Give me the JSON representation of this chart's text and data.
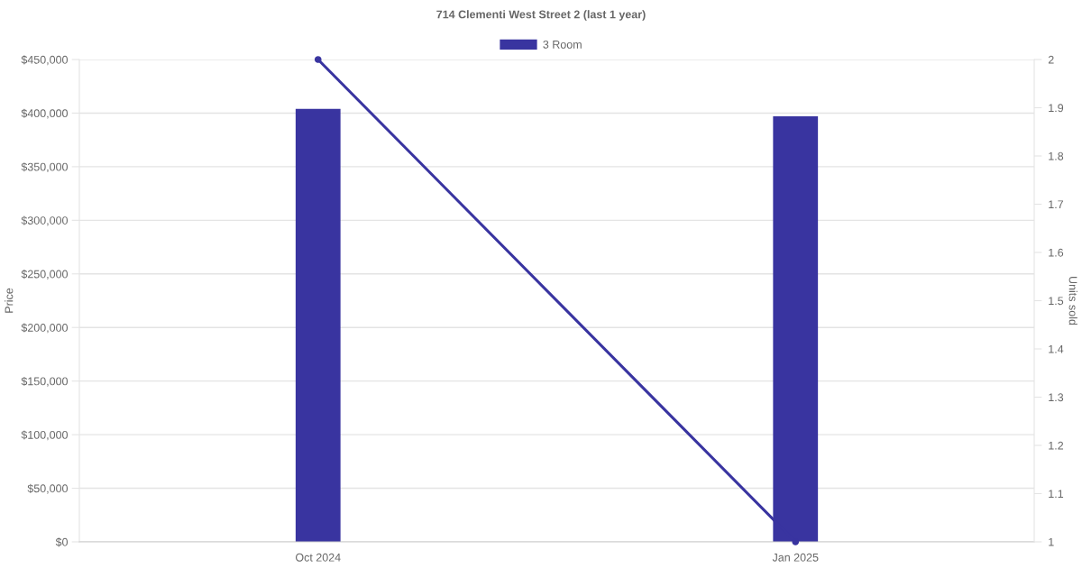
{
  "chart_data": {
    "type": "bar",
    "title": "714 Clementi West Street 2 (last 1 year)",
    "ylabel": "Price",
    "y2label": "Units sold",
    "categories": [
      "Oct 2024",
      "Jan 2025"
    ],
    "series": [
      {
        "name": "3 Room",
        "color": "#3934a0",
        "values": [
          404000,
          397000
        ]
      },
      {
        "type": "line",
        "axis": "y2",
        "color": "#3934a0",
        "values": [
          2,
          1
        ],
        "marker": "circle",
        "line_style": "solid"
      }
    ],
    "ylim": [
      0,
      450000
    ],
    "yticks": [
      {
        "value": 0,
        "label": "$0"
      },
      {
        "value": 50000,
        "label": "$50,000"
      },
      {
        "value": 100000,
        "label": "$100,000"
      },
      {
        "value": 150000,
        "label": "$150,000"
      },
      {
        "value": 200000,
        "label": "$200,000"
      },
      {
        "value": 250000,
        "label": "$250,000"
      },
      {
        "value": 300000,
        "label": "$300,000"
      },
      {
        "value": 350000,
        "label": "$350,000"
      },
      {
        "value": 400000,
        "label": "$400,000"
      },
      {
        "value": 450000,
        "label": "$450,000"
      }
    ],
    "y2lim": [
      1,
      2
    ],
    "y2ticks": [
      1,
      1.1,
      1.2,
      1.3,
      1.4,
      1.5,
      1.6,
      1.7,
      1.8,
      1.9,
      2
    ],
    "grid": "y",
    "legend": "top"
  }
}
